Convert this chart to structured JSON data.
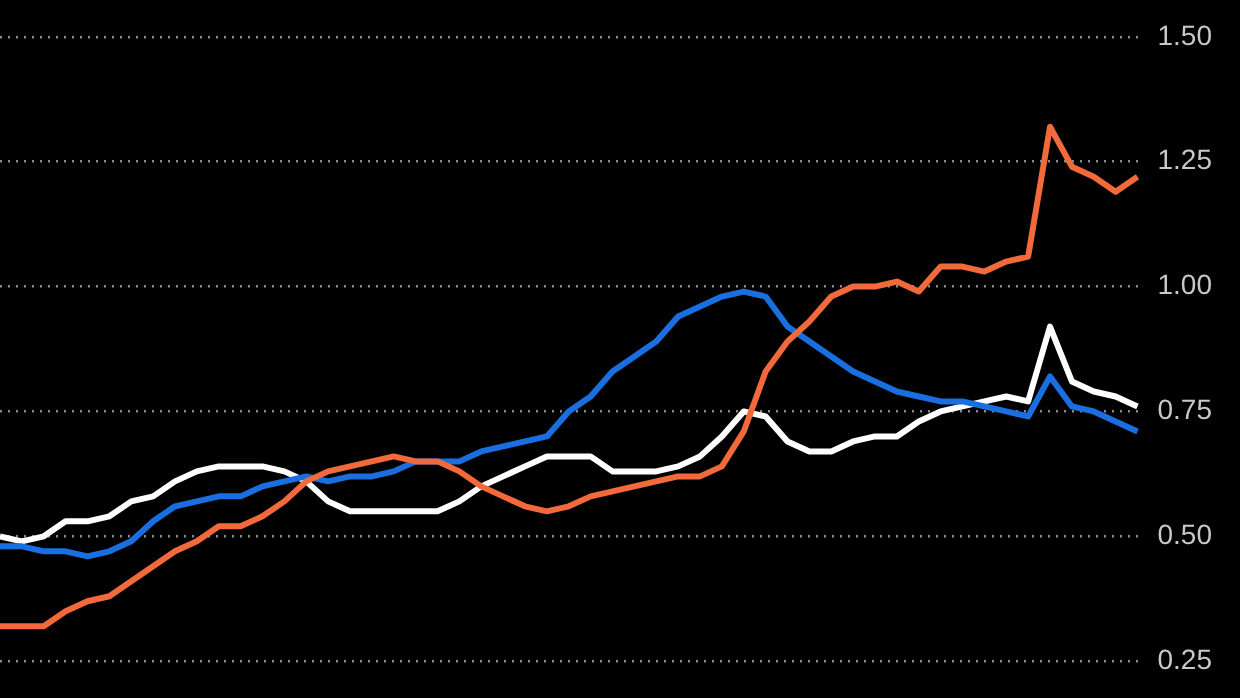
{
  "chart_data": {
    "type": "line",
    "categories": [
      null,
      null,
      null,
      null,
      null,
      null,
      null,
      null,
      null,
      null,
      null,
      null,
      null,
      null,
      null,
      null,
      null,
      null,
      null,
      null,
      null,
      null,
      null,
      null,
      null,
      null,
      null,
      null,
      null,
      null,
      null,
      null,
      null,
      null,
      null,
      null,
      null,
      null,
      null,
      null,
      null,
      null,
      null,
      null,
      null,
      null,
      null,
      null,
      null,
      null,
      null,
      null,
      null
    ],
    "series": [
      {
        "color": "#f26a3b",
        "values": [
          0.32,
          0.32,
          0.32,
          0.35,
          0.37,
          0.38,
          0.41,
          0.44,
          0.47,
          0.49,
          0.52,
          0.52,
          0.54,
          0.57,
          0.61,
          0.63,
          0.64,
          0.65,
          0.66,
          0.65,
          0.65,
          0.63,
          0.6,
          0.58,
          0.56,
          0.55,
          0.56,
          0.58,
          0.59,
          0.6,
          0.61,
          0.62,
          0.62,
          0.64,
          0.71,
          0.83,
          0.89,
          0.93,
          0.98,
          1.0,
          1.0,
          1.01,
          0.99,
          1.04,
          1.04,
          1.03,
          1.05,
          1.06,
          1.32,
          1.24,
          1.22,
          1.19,
          1.22
        ]
      },
      {
        "color": "#1a6fe0",
        "values": [
          0.48,
          0.48,
          0.47,
          0.47,
          0.46,
          0.47,
          0.49,
          0.53,
          0.56,
          0.57,
          0.58,
          0.58,
          0.6,
          0.61,
          0.62,
          0.61,
          0.62,
          0.62,
          0.63,
          0.65,
          0.65,
          0.65,
          0.67,
          0.68,
          0.69,
          0.7,
          0.75,
          0.78,
          0.83,
          0.86,
          0.89,
          0.94,
          0.96,
          0.98,
          0.99,
          0.98,
          0.92,
          0.89,
          0.86,
          0.83,
          0.81,
          0.79,
          0.78,
          0.77,
          0.77,
          0.76,
          0.75,
          0.74,
          0.82,
          0.76,
          0.75,
          0.73,
          0.71
        ]
      },
      {
        "color": "#ffffff",
        "values": [
          0.5,
          0.49,
          0.5,
          0.53,
          0.53,
          0.54,
          0.57,
          0.58,
          0.61,
          0.63,
          0.64,
          0.64,
          0.64,
          0.63,
          0.61,
          0.57,
          0.55,
          0.55,
          0.55,
          0.55,
          0.55,
          0.57,
          0.6,
          0.62,
          0.64,
          0.66,
          0.66,
          0.66,
          0.63,
          0.63,
          0.63,
          0.64,
          0.66,
          0.7,
          0.75,
          0.74,
          0.69,
          0.67,
          0.67,
          0.69,
          0.7,
          0.7,
          0.73,
          0.75,
          0.76,
          0.77,
          0.78,
          0.77,
          0.92,
          0.81,
          0.79,
          0.78,
          0.76
        ]
      }
    ],
    "ylim": [
      0.25,
      1.5
    ],
    "yticks": [
      {
        "value": 0.25,
        "label": "0.25"
      },
      {
        "value": 0.5,
        "label": "0.50"
      },
      {
        "value": 0.75,
        "label": "0.75"
      },
      {
        "value": 1,
        "label": "1.00"
      },
      {
        "value": 1.25,
        "label": "1.25"
      },
      {
        "value": 1.5,
        "label": "1.50"
      }
    ],
    "grid": "y",
    "legend": false,
    "marker": "none",
    "line_style": "solid",
    "tick_labels": "y"
  }
}
